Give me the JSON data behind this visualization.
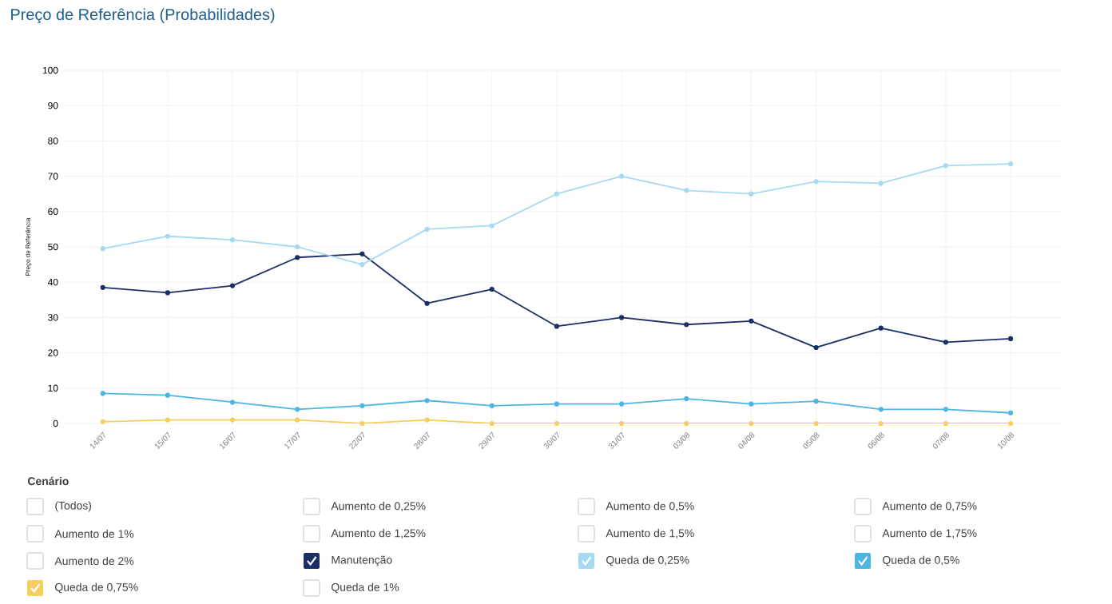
{
  "chart_data": {
    "type": "line",
    "title": "Preço de Referência (Probabilidades)",
    "ylabel": "Preço de Referência",
    "legend_title": "Cenário",
    "categories": [
      "14/07",
      "15/07",
      "16/07",
      "17/07",
      "22/07",
      "28/07",
      "29/07",
      "30/07",
      "31/07",
      "03/08",
      "04/08",
      "05/08",
      "06/08",
      "07/08",
      "10/08"
    ],
    "ylim": [
      0,
      100
    ],
    "yticks": [
      0,
      10,
      20,
      30,
      40,
      50,
      60,
      70,
      80,
      90,
      100
    ],
    "grid": true,
    "legend": "bottom",
    "marker": "circle",
    "line_style": "solid",
    "series": [
      {
        "name": "(Todos)",
        "values": [
          null,
          null,
          null,
          null,
          null,
          null,
          null,
          null,
          null,
          null,
          null,
          null,
          null,
          null,
          null
        ]
      },
      {
        "name": "Aumento de 0,25%",
        "values": [
          null,
          null,
          null,
          null,
          null,
          null,
          null,
          null,
          null,
          null,
          null,
          null,
          null,
          null,
          null
        ]
      },
      {
        "name": "Aumento de 0,5%",
        "values": [
          null,
          null,
          null,
          null,
          null,
          null,
          null,
          null,
          null,
          null,
          null,
          null,
          null,
          null,
          null
        ]
      },
      {
        "name": "Aumento de 0,75%",
        "values": [
          null,
          null,
          null,
          null,
          null,
          null,
          null,
          null,
          null,
          null,
          null,
          null,
          null,
          null,
          null
        ]
      },
      {
        "name": "Aumento de 1%",
        "values": [
          null,
          null,
          null,
          null,
          null,
          null,
          null,
          null,
          null,
          null,
          null,
          null,
          null,
          null,
          null
        ]
      },
      {
        "name": "Aumento de 1,25%",
        "values": [
          null,
          null,
          null,
          null,
          null,
          null,
          null,
          null,
          null,
          null,
          null,
          null,
          null,
          null,
          null
        ]
      },
      {
        "name": "Aumento de 1,5%",
        "values": [
          null,
          null,
          null,
          null,
          null,
          null,
          null,
          null,
          null,
          null,
          null,
          null,
          null,
          null,
          null
        ]
      },
      {
        "name": "Aumento de 1,75%",
        "values": [
          null,
          null,
          null,
          null,
          null,
          null,
          null,
          null,
          null,
          null,
          null,
          null,
          null,
          null,
          null
        ]
      },
      {
        "name": "Aumento de 2%",
        "values": [
          null,
          null,
          null,
          null,
          null,
          null,
          null,
          null,
          null,
          null,
          null,
          null,
          null,
          null,
          null
        ]
      },
      {
        "name": "Manutenção",
        "color": "#1b2f66",
        "values": [
          38.5,
          37,
          39,
          47,
          48,
          34,
          38,
          27.5,
          30,
          28,
          29,
          21.5,
          27,
          23,
          24
        ]
      },
      {
        "name": "Queda de 0,25%",
        "color": "#a6d9f2",
        "values": [
          49.5,
          53,
          52,
          50,
          45,
          55,
          56,
          65,
          70,
          66,
          65,
          68.5,
          68,
          73,
          73.5
        ]
      },
      {
        "name": "Queda de 0,5%",
        "color": "#4cb6e2",
        "values": [
          8.5,
          8,
          6,
          4,
          5,
          6.5,
          5,
          5.5,
          5.5,
          7,
          5.5,
          6.3,
          4,
          4,
          3
        ]
      },
      {
        "name": "Queda de 0,75%",
        "color": "#f5cf5e",
        "values": [
          0.5,
          1,
          1,
          1,
          0,
          1,
          0,
          0,
          0,
          0,
          0,
          0,
          0,
          0,
          0
        ]
      },
      {
        "name": "Queda de 1%",
        "values": [
          null,
          null,
          null,
          null,
          null,
          null,
          null,
          null,
          null,
          null,
          null,
          null,
          null,
          null,
          null
        ]
      }
    ]
  }
}
